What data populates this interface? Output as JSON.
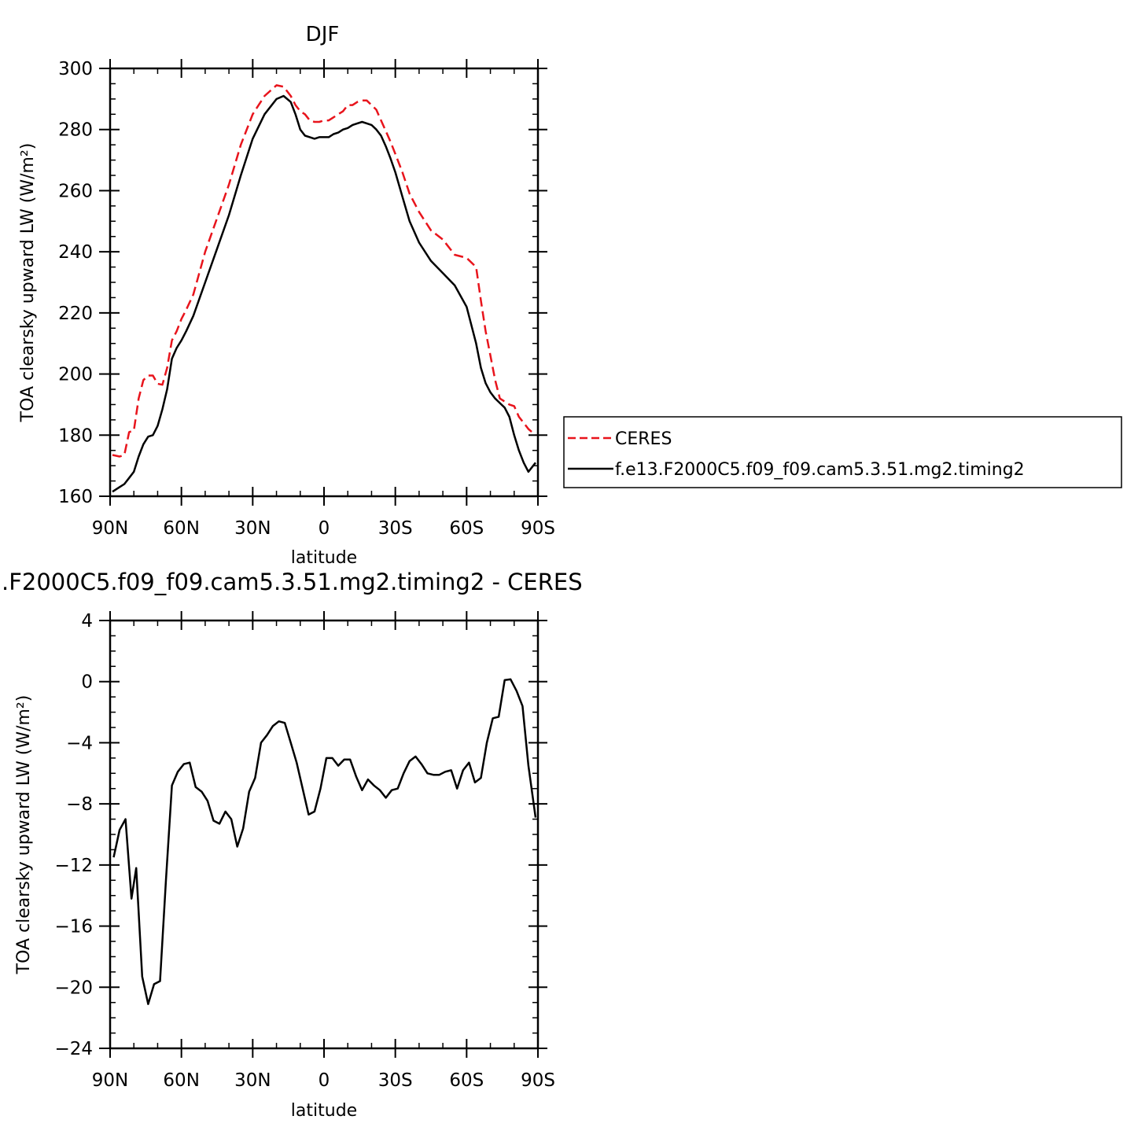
{
  "chart_data": [
    {
      "type": "line",
      "title": "DJF",
      "xlabel": "latitude",
      "ylabel": "TOA clearsky upward LW (W/m²)",
      "xlim": [
        90,
        -90
      ],
      "ylim": [
        160,
        300
      ],
      "x_ticks": [
        90,
        60,
        30,
        0,
        -30,
        -60,
        -90
      ],
      "x_tick_labels": [
        "90N",
        "60N",
        "30N",
        "0",
        "30S",
        "60S",
        "90S"
      ],
      "y_ticks": [
        160,
        180,
        200,
        220,
        240,
        260,
        280,
        300
      ],
      "y_tick_labels": [
        "160",
        "180",
        "200",
        "220",
        "240",
        "260",
        "280",
        "300"
      ],
      "grid": false,
      "legend_position": "right",
      "x": [
        89,
        86,
        84,
        82,
        80,
        78,
        76,
        74,
        72,
        70,
        68,
        66,
        64,
        62,
        60,
        58,
        55,
        50,
        45,
        40,
        35,
        30,
        25,
        20,
        17,
        14,
        12,
        10,
        8,
        6,
        4,
        2,
        0,
        -2,
        -4,
        -6,
        -8,
        -10,
        -12,
        -14,
        -16,
        -18,
        -20,
        -22,
        -24,
        -26,
        -28,
        -30,
        -33,
        -36,
        -40,
        -45,
        -50,
        -55,
        -60,
        -64,
        -66,
        -68,
        -70,
        -72,
        -74,
        -76,
        -78,
        -80,
        -82,
        -84,
        -86,
        -89
      ],
      "series": [
        {
          "name": "CERES",
          "color": "#e8141c",
          "dash": true,
          "values": [
            173.5,
            173,
            173.5,
            181,
            181.5,
            192,
            198,
            199.5,
            199.5,
            196.8,
            196.5,
            202,
            211,
            214,
            218,
            221,
            226,
            240,
            251,
            262,
            275,
            285,
            291,
            294.5,
            294,
            291,
            288,
            286,
            285,
            283,
            282.5,
            282.5,
            283,
            283,
            284,
            285,
            286,
            288,
            288,
            289,
            289.5,
            289.5,
            288,
            286.5,
            283,
            279.5,
            276,
            272,
            266,
            259,
            253,
            247,
            244,
            239,
            238,
            235,
            224,
            214,
            206,
            198,
            192,
            191,
            190,
            189.5,
            186,
            184,
            182,
            180
          ]
        },
        {
          "name": "f.e13.F2000C5.f09_f09.cam5.3.51.mg2.timing2",
          "color": "#000000",
          "dash": false,
          "values": [
            161.5,
            163,
            164,
            166,
            168,
            173,
            177,
            179.5,
            180,
            183,
            188.5,
            195,
            205,
            208.5,
            211,
            214,
            219,
            230,
            241,
            252,
            265,
            277,
            285,
            290,
            291,
            289,
            285,
            280,
            278,
            277.5,
            277,
            277.5,
            277.5,
            277.5,
            278.5,
            279,
            280,
            280.5,
            281.5,
            282,
            282.5,
            282,
            281.5,
            280,
            278,
            274.5,
            270.5,
            266,
            258,
            250,
            243,
            237,
            233,
            229,
            222,
            210,
            202,
            197,
            194,
            192,
            190.5,
            189,
            186,
            180,
            175,
            171,
            168,
            171
          ]
        }
      ]
    },
    {
      "type": "line",
      "title": ".F2000C5.f09_f09.cam5.3.51.mg2.timing2 - CERES",
      "xlabel": "latitude",
      "ylabel": "TOA clearsky upward LW (W/m²)",
      "xlim": [
        90,
        -90
      ],
      "ylim": [
        -24,
        4
      ],
      "x_ticks": [
        90,
        60,
        30,
        0,
        -30,
        -60,
        -90
      ],
      "x_tick_labels": [
        "90N",
        "60N",
        "30N",
        "0",
        "30S",
        "60S",
        "90S"
      ],
      "y_ticks": [
        -24,
        -20,
        -16,
        -12,
        -8,
        -4,
        0,
        4
      ],
      "y_tick_labels": [
        "−24",
        "−20",
        "−16",
        "−12",
        "−8",
        "−4",
        "0",
        "4"
      ],
      "grid": false,
      "x": [
        88.5,
        86,
        83.5,
        81,
        79,
        76.5,
        74,
        71.5,
        69,
        66.5,
        64,
        61.5,
        59,
        56.5,
        54,
        51.5,
        49,
        46.5,
        44,
        41.5,
        39,
        36.5,
        34,
        31.5,
        29,
        26.5,
        24,
        21.5,
        19,
        16.5,
        14,
        11.5,
        9,
        6.5,
        4,
        1.5,
        -1,
        -3.5,
        -6,
        -8.5,
        -11,
        -13.5,
        -16,
        -18.5,
        -21,
        -23.5,
        -26,
        -28.5,
        -31,
        -33.5,
        -36,
        -38.5,
        -41,
        -43.5,
        -46,
        -48.5,
        -51,
        -53.5,
        -56,
        -58.5,
        -61,
        -63.5,
        -66,
        -68.5,
        -71,
        -73.5,
        -76,
        -78.5,
        -81,
        -83.5,
        -86,
        -89
      ],
      "series": [
        {
          "name": "",
          "color": "#000000",
          "dash": false,
          "values": [
            -11.5,
            -9.7,
            -9,
            -14.2,
            -12.2,
            -19.3,
            -21.1,
            -19.8,
            -19.6,
            -13,
            -6.8,
            -5.9,
            -5.4,
            -5.3,
            -6.9,
            -7.2,
            -7.8,
            -9.1,
            -9.3,
            -8.5,
            -9,
            -10.8,
            -9.6,
            -7.2,
            -6.3,
            -4,
            -3.5,
            -2.9,
            -2.6,
            -2.7,
            -4,
            -5.3,
            -7,
            -8.7,
            -8.5,
            -7,
            -5,
            -5,
            -5.5,
            -5.1,
            -5.1,
            -6.2,
            -7.1,
            -6.4,
            -6.8,
            -7.1,
            -7.6,
            -7.1,
            -7,
            -6,
            -5.2,
            -4.9,
            -5.4,
            -6,
            -6.1,
            -6.1,
            -5.9,
            -5.8,
            -7,
            -5.8,
            -5.3,
            -6.6,
            -6.3,
            -4,
            -2.4,
            -2.3,
            0.1,
            0.15,
            -0.6,
            -1.6,
            -5.5,
            -8.9
          ]
        }
      ]
    }
  ]
}
